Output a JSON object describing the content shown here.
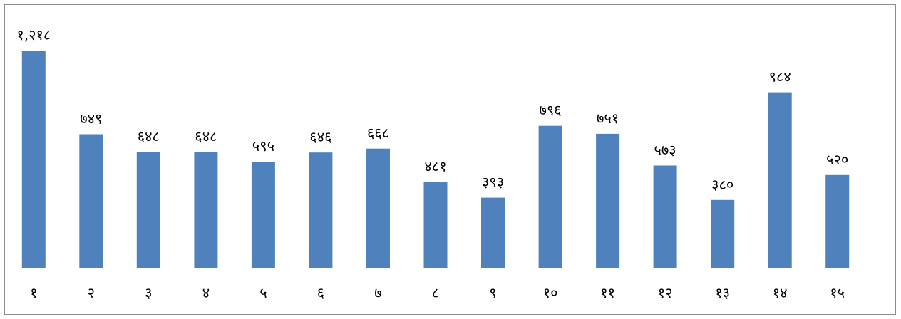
{
  "chart_data": {
    "type": "bar",
    "categories": [
      "१",
      "२",
      "३",
      "४",
      "५",
      "६",
      "७",
      "८",
      "९",
      "१०",
      "११",
      "१२",
      "१३",
      "१४",
      "१५"
    ],
    "values": [
      1218,
      749,
      648,
      648,
      595,
      646,
      668,
      481,
      393,
      796,
      751,
      573,
      380,
      984,
      520
    ],
    "data_labels": [
      "१,२१८",
      "७४९",
      "६४८",
      "६४८",
      "५९५",
      "६४६",
      "६६८",
      "४८१",
      "३९३",
      "७९६",
      "७५१",
      "५७३",
      "३८०",
      "९८४",
      "५२०"
    ],
    "ylim": [
      0,
      1250
    ],
    "grid": false,
    "legend": "none",
    "bar_color": "#4f81bd"
  }
}
